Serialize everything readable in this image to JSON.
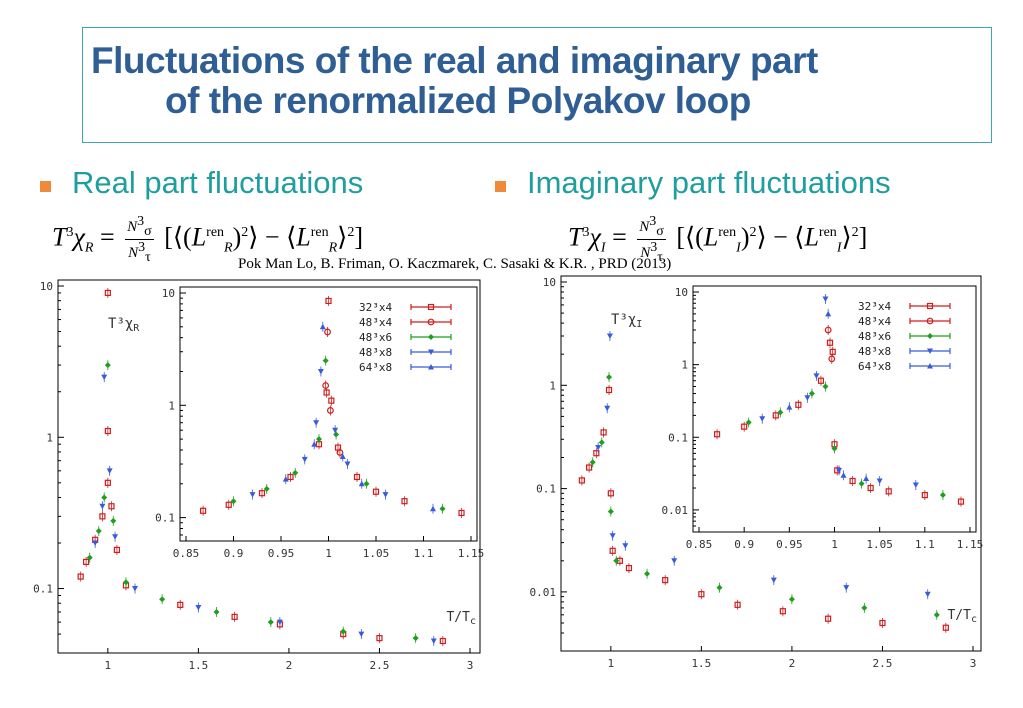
{
  "slide": {
    "title_line1": "Fluctuations of the  real and imaginary part",
    "title_line2": "of  the renormalized Polyakov loop",
    "bullet_left": "Real  part fluctuations",
    "bullet_right": "Imaginary part fluctuations",
    "formula_left": {
      "lhs": "T³χ",
      "lhs_sub": "R",
      "num": "N³σ",
      "den": "N³τ",
      "body": "[⟨(L^ren_R)²⟩ − ⟨L^ren_R⟩²]"
    },
    "formula_right": {
      "lhs": "T³χ",
      "lhs_sub": "I",
      "num": "N³σ",
      "den": "N³τ",
      "body": "[⟨(L^ren_I)²⟩ − ⟨L^ren_I⟩²]"
    },
    "citation": "Pok Man Lo, B. Friman, O. Kaczmarek,  C. Sasaki & K.R. , PRD (2013)",
    "colors": {
      "title": "#2e5e93",
      "bullet_text": "#1f9e9e",
      "bullet_square": "#ef8a3a",
      "frame": "#3fa7a7"
    }
  },
  "legend_entries": [
    {
      "label": "32³x4",
      "color": "#d01c1c",
      "marker": "open-square"
    },
    {
      "label": "48³x4",
      "color": "#d01c1c",
      "marker": "open-circle"
    },
    {
      "label": "48³x6",
      "color": "#1f9e1f",
      "marker": "diamond"
    },
    {
      "label": "48³x8",
      "color": "#3a5bd9",
      "marker": "triangle-down"
    },
    {
      "label": "64³x8",
      "color": "#3a5bd9",
      "marker": "triangle-up"
    }
  ],
  "chart_data": [
    {
      "type": "scatter",
      "id": "main-real",
      "ylabel": "T³χ_R",
      "xlabel": "T/T_c",
      "yscale": "log",
      "xlim": [
        0.78,
        3.0
      ],
      "ylim": [
        0.045,
        10
      ],
      "xticks": [
        "1",
        "1.5",
        "2",
        "2.5",
        "3"
      ],
      "yticks": [
        "10",
        "1",
        "0.1"
      ],
      "series": [
        {
          "name": "32³x4",
          "points": [
            [
              0.85,
              0.12
            ],
            [
              0.88,
              0.15
            ],
            [
              0.93,
              0.21
            ],
            [
              0.97,
              0.3
            ],
            [
              1.0,
              0.5
            ],
            [
              1.0,
              1.1
            ],
            [
              1.0,
              9
            ],
            [
              1.02,
              0.35
            ],
            [
              1.05,
              0.18
            ],
            [
              1.1,
              0.105
            ],
            [
              1.4,
              0.078
            ],
            [
              1.7,
              0.065
            ],
            [
              1.95,
              0.058
            ],
            [
              2.3,
              0.05
            ],
            [
              2.5,
              0.047
            ],
            [
              2.85,
              0.045
            ]
          ]
        },
        {
          "name": "48³x6",
          "points": [
            [
              0.9,
              0.16
            ],
            [
              0.95,
              0.24
            ],
            [
              0.98,
              0.4
            ],
            [
              1.0,
              3
            ],
            [
              1.03,
              0.28
            ],
            [
              1.1,
              0.11
            ],
            [
              1.3,
              0.085
            ],
            [
              1.6,
              0.07
            ],
            [
              1.9,
              0.06
            ],
            [
              2.3,
              0.052
            ],
            [
              2.7,
              0.047
            ]
          ]
        },
        {
          "name": "48³x8",
          "points": [
            [
              0.93,
              0.2
            ],
            [
              0.97,
              0.35
            ],
            [
              0.98,
              2.5
            ],
            [
              1.01,
              0.6
            ],
            [
              1.04,
              0.22
            ],
            [
              1.15,
              0.1
            ],
            [
              1.5,
              0.075
            ],
            [
              1.95,
              0.06
            ],
            [
              2.4,
              0.05
            ],
            [
              2.8,
              0.045
            ]
          ]
        }
      ]
    },
    {
      "type": "scatter",
      "id": "inset-real",
      "yscale": "log",
      "xlim": [
        0.85,
        1.15
      ],
      "ylim": [
        0.07,
        10
      ],
      "xticks": [
        "0.85",
        "0.9",
        "0.95",
        "1",
        "1.05",
        "1.1",
        "1.15"
      ],
      "yticks": [
        "10",
        "1",
        "0.1"
      ],
      "series": [
        {
          "name": "32³x4",
          "points": [
            [
              0.868,
              0.115
            ],
            [
              0.895,
              0.13
            ],
            [
              0.93,
              0.165
            ],
            [
              0.96,
              0.23
            ],
            [
              0.99,
              0.45
            ],
            [
              0.998,
              1.3
            ],
            [
              1.0,
              8.5
            ],
            [
              1.003,
              1.1
            ],
            [
              1.01,
              0.42
            ],
            [
              1.03,
              0.23
            ],
            [
              1.05,
              0.17
            ],
            [
              1.08,
              0.14
            ],
            [
              1.14,
              0.11
            ]
          ]
        },
        {
          "name": "48³x4",
          "points": [
            [
              0.997,
              1.5
            ],
            [
              0.999,
              4.5
            ],
            [
              1.002,
              0.9
            ],
            [
              1.012,
              0.38
            ]
          ]
        },
        {
          "name": "48³x6",
          "points": [
            [
              0.9,
              0.14
            ],
            [
              0.935,
              0.18
            ],
            [
              0.965,
              0.25
            ],
            [
              0.99,
              0.5
            ],
            [
              0.997,
              2.5
            ],
            [
              1.008,
              0.55
            ],
            [
              1.04,
              0.2
            ],
            [
              1.12,
              0.12
            ]
          ]
        },
        {
          "name": "48³x8",
          "points": [
            [
              0.92,
              0.16
            ],
            [
              0.975,
              0.33
            ],
            [
              0.987,
              0.7
            ],
            [
              0.992,
              2.0
            ],
            [
              1.007,
              0.6
            ],
            [
              1.02,
              0.3
            ],
            [
              1.06,
              0.16
            ]
          ]
        },
        {
          "name": "64³x8",
          "points": [
            [
              0.955,
              0.22
            ],
            [
              0.985,
              0.45
            ],
            [
              0.994,
              5
            ],
            [
              1.015,
              0.35
            ],
            [
              1.035,
              0.2
            ],
            [
              1.11,
              0.12
            ]
          ]
        }
      ]
    },
    {
      "type": "scatter",
      "id": "main-imag",
      "ylabel": "T³χ_I",
      "xlabel": "T/T_c",
      "yscale": "log",
      "xlim": [
        0.78,
        3.0
      ],
      "ylim": [
        0.0035,
        10
      ],
      "xticks": [
        "1",
        "1.5",
        "2",
        "2.5",
        "3"
      ],
      "yticks": [
        "10",
        "1",
        "0.1",
        "0.01"
      ],
      "series": [
        {
          "name": "32³x4",
          "points": [
            [
              0.84,
              0.12
            ],
            [
              0.88,
              0.16
            ],
            [
              0.92,
              0.22
            ],
            [
              0.96,
              0.35
            ],
            [
              0.99,
              0.9
            ],
            [
              1.0,
              0.09
            ],
            [
              1.01,
              0.025
            ],
            [
              1.05,
              0.02
            ],
            [
              1.1,
              0.017
            ],
            [
              1.3,
              0.013
            ],
            [
              1.5,
              0.0095
            ],
            [
              1.7,
              0.0075
            ],
            [
              1.95,
              0.0065
            ],
            [
              2.2,
              0.0055
            ],
            [
              2.5,
              0.005
            ],
            [
              2.85,
              0.0045
            ]
          ]
        },
        {
          "name": "48³x6",
          "points": [
            [
              0.9,
              0.18
            ],
            [
              0.95,
              0.28
            ],
            [
              0.99,
              1.2
            ],
            [
              1.0,
              0.06
            ],
            [
              1.03,
              0.02
            ],
            [
              1.2,
              0.015
            ],
            [
              1.6,
              0.011
            ],
            [
              2.0,
              0.0085
            ],
            [
              2.4,
              0.007
            ],
            [
              2.8,
              0.006
            ]
          ]
        },
        {
          "name": "48³x8",
          "points": [
            [
              0.93,
              0.25
            ],
            [
              0.98,
              0.6
            ],
            [
              0.995,
              3
            ],
            [
              1.01,
              0.035
            ],
            [
              1.08,
              0.028
            ],
            [
              1.35,
              0.02
            ],
            [
              1.9,
              0.013
            ],
            [
              2.3,
              0.011
            ],
            [
              2.75,
              0.0095
            ]
          ]
        }
      ]
    },
    {
      "type": "scatter",
      "id": "inset-imag",
      "yscale": "log",
      "xlim": [
        0.85,
        1.15
      ],
      "ylim": [
        0.006,
        10
      ],
      "xticks": [
        "0.85",
        "0.9",
        "0.95",
        "1",
        "1.05",
        "1.1",
        "1.15"
      ],
      "yticks": [
        "10",
        "1",
        "0.1",
        "0.01"
      ],
      "series": [
        {
          "name": "32³x4",
          "points": [
            [
              0.87,
              0.11
            ],
            [
              0.9,
              0.14
            ],
            [
              0.935,
              0.2
            ],
            [
              0.96,
              0.28
            ],
            [
              0.985,
              0.6
            ],
            [
              0.995,
              2
            ],
            [
              0.998,
              1.5
            ],
            [
              1.0,
              0.08
            ],
            [
              1.003,
              0.035
            ],
            [
              1.02,
              0.025
            ],
            [
              1.04,
              0.02
            ],
            [
              1.06,
              0.018
            ],
            [
              1.1,
              0.016
            ],
            [
              1.14,
              0.013
            ]
          ]
        },
        {
          "name": "48³x4",
          "points": [
            [
              0.993,
              3
            ],
            [
              0.997,
              1.2
            ]
          ]
        },
        {
          "name": "48³x6",
          "points": [
            [
              0.905,
              0.16
            ],
            [
              0.94,
              0.22
            ],
            [
              0.975,
              0.4
            ],
            [
              0.99,
              0.5
            ],
            [
              1.0,
              0.07
            ],
            [
              1.03,
              0.023
            ],
            [
              1.12,
              0.016
            ]
          ]
        },
        {
          "name": "48³x8",
          "points": [
            [
              0.92,
              0.18
            ],
            [
              0.97,
              0.35
            ],
            [
              0.98,
              0.7
            ],
            [
              0.99,
              8
            ],
            [
              1.005,
              0.035
            ],
            [
              1.05,
              0.025
            ],
            [
              1.09,
              0.022
            ]
          ]
        },
        {
          "name": "64³x8",
          "points": [
            [
              0.95,
              0.26
            ],
            [
              0.993,
              5
            ],
            [
              1.01,
              0.03
            ],
            [
              1.035,
              0.027
            ]
          ]
        }
      ]
    }
  ]
}
